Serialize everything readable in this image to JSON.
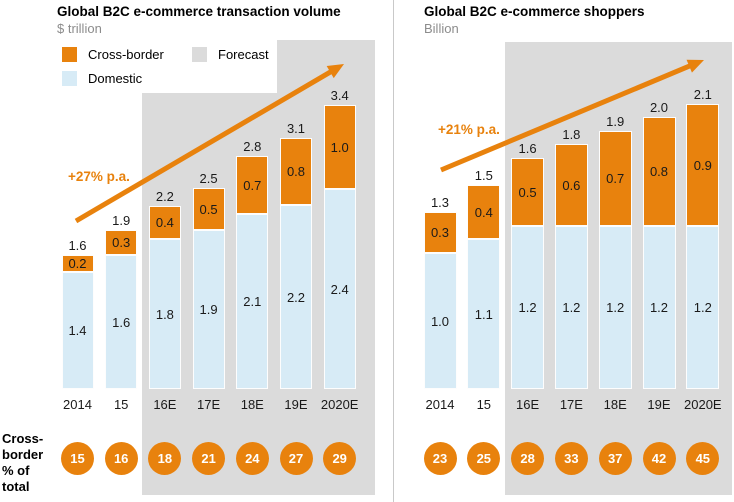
{
  "colors": {
    "cross_border_orange": "#E8820D",
    "domestic_blue": "#D7EBF6",
    "forecast_gray": "#DBDBDB",
    "subtitle_gray": "#8C8C8C",
    "circle_text": "#FFFFFF"
  },
  "legend": {
    "position": "top-left of first chart",
    "items": [
      {
        "label": "Cross-border",
        "color": "#E8820D"
      },
      {
        "label": "Forecast",
        "color": "#DBDBDB"
      },
      {
        "label": "Domestic",
        "color": "#D7EBF6"
      }
    ]
  },
  "footer": {
    "label": "Cross-\nborder\n% of\ntotal"
  },
  "chart_data": [
    {
      "type": "bar",
      "stacked": true,
      "stack_order": "bottom-to-top",
      "title": "Global B2C e-commerce transaction volume",
      "unit_label": "$ trillion",
      "categories": [
        "2014",
        "15",
        "16E",
        "17E",
        "18E",
        "19E",
        "2020E"
      ],
      "series": [
        {
          "name": "Domestic",
          "values": [
            1.4,
            1.6,
            1.8,
            1.9,
            2.1,
            2.2,
            2.4
          ]
        },
        {
          "name": "Cross-border",
          "values": [
            0.2,
            0.3,
            0.4,
            0.5,
            0.7,
            0.8,
            1.0
          ]
        }
      ],
      "totals": [
        1.6,
        1.9,
        2.2,
        2.5,
        2.8,
        3.1,
        3.4
      ],
      "cross_border_pct_of_total": [
        15,
        16,
        18,
        21,
        24,
        27,
        29
      ],
      "growth_annotation": "+27% p.a.",
      "forecast_from_category": "16E",
      "axes": "no visible y-axis; value labels on segments and above bars"
    },
    {
      "type": "bar",
      "stacked": true,
      "stack_order": "bottom-to-top",
      "title": "Global B2C e-commerce shoppers",
      "unit_label": "Billion",
      "categories": [
        "2014",
        "15",
        "16E",
        "17E",
        "18E",
        "19E",
        "2020E"
      ],
      "series": [
        {
          "name": "Domestic",
          "values": [
            1.0,
            1.1,
            1.2,
            1.2,
            1.2,
            1.2,
            1.2
          ]
        },
        {
          "name": "Cross-border",
          "values": [
            0.3,
            0.4,
            0.5,
            0.6,
            0.7,
            0.8,
            0.9
          ]
        }
      ],
      "totals": [
        1.3,
        1.5,
        1.6,
        1.8,
        1.9,
        2.0,
        2.1
      ],
      "cross_border_pct_of_total": [
        23,
        25,
        28,
        33,
        37,
        42,
        45
      ],
      "growth_annotation": "+21% p.a.",
      "forecast_from_category": "16E",
      "axes": "no visible y-axis; value labels on segments and above bars"
    }
  ]
}
